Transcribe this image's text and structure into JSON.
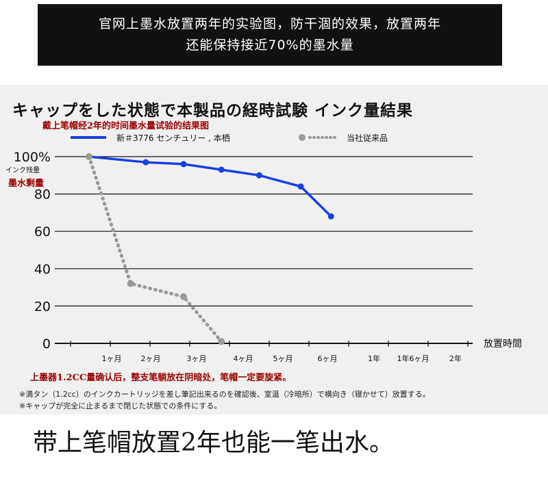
{
  "banner": {
    "line1": "官网上墨水放置两年的实验图，防干涸的效果，放置两年",
    "line2": "还能保持接近70%的墨水量"
  },
  "chart_data": {
    "type": "line",
    "title": "キャップをした状態で本製品の経時試験 インク量結果",
    "subtitle": "戴上笔帽经2年的时间墨水量试验的结果图",
    "ylabel": "インク残量",
    "ylabel_cn": "墨水剩量",
    "xlabel": "放置時間",
    "y_ticks": [
      "100%",
      "80",
      "60",
      "40",
      "20",
      "0"
    ],
    "ylim": [
      0,
      100
    ],
    "categories": [
      "1ヶ月",
      "2ヶ月",
      "3ヶ月",
      "4ヶ月",
      "5ヶ月",
      "6ヶ月",
      "1年",
      "1年6ヶ月",
      "2年"
    ],
    "grid": true,
    "legend_position": "top",
    "series": [
      {
        "name": "新＃3776 センチュリー , 本栖",
        "color": "#1a3fe0",
        "style": "solid",
        "points": [
          [
            0,
            100
          ],
          [
            1.5,
            97
          ],
          [
            2.5,
            96
          ],
          [
            3.5,
            93
          ],
          [
            4.5,
            90
          ],
          [
            5.6,
            84
          ],
          [
            6.4,
            68
          ]
        ]
      },
      {
        "name": "当社従来品",
        "color": "#9a9a9a",
        "style": "dotted",
        "points": [
          [
            0,
            100
          ],
          [
            1.1,
            32
          ],
          [
            2.5,
            25
          ],
          [
            3.5,
            1
          ]
        ]
      }
    ]
  },
  "notes": {
    "red": "上墨器1.2CC量确认后，整支笔躺放在阴暗处，笔帽一定要旋紧。",
    "line1": "※満タン（1.2cc）のインクカートリッジを差し筆記出来るのを確認後、室温（冷暗所）で横向き（寝かせて）放置する。",
    "line2": "※キャップが完全に止まるまで閉じた状態での条件にする。"
  },
  "caption": "带上笔帽放置2年也能一笔出水。"
}
